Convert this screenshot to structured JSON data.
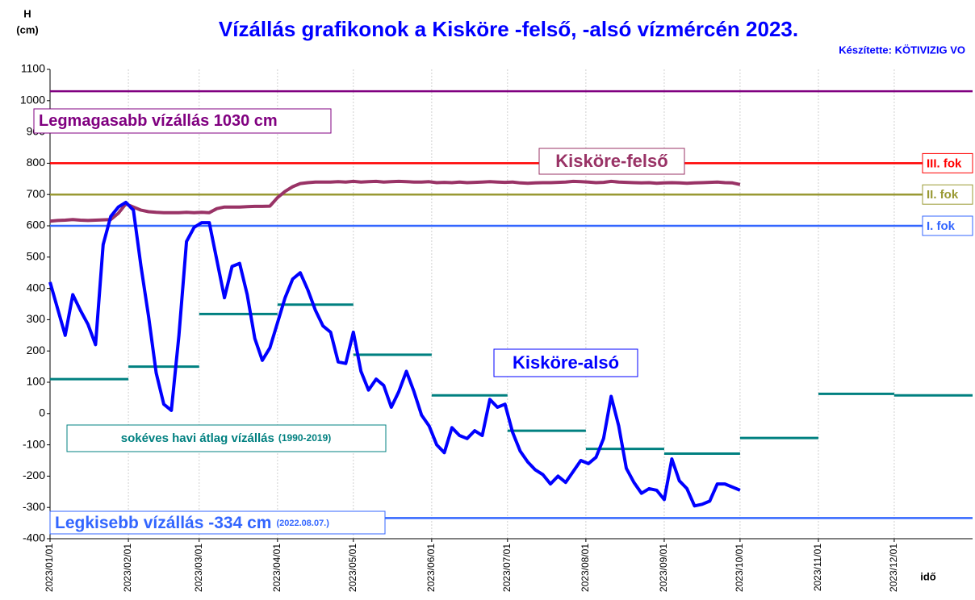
{
  "chart_data": {
    "type": "line",
    "title": "Vízállás grafikonok a Kisköre -felső, -alsó vízmércén 2023.",
    "credit": "Készítette: KÖTIVIZIG VO",
    "ylabel": "H",
    "yunit": "(cm)",
    "xlabel": "idő",
    "ylim": [
      -400,
      1100
    ],
    "yticks": [
      -400,
      -300,
      -200,
      -100,
      0,
      100,
      200,
      300,
      400,
      500,
      600,
      700,
      800,
      900,
      1000,
      1100
    ],
    "xlim": [
      "2023/01/01",
      "2023/12/31"
    ],
    "xticks": [
      "2023/01/01",
      "2023/02/01",
      "2023/03/01",
      "2023/04/01",
      "2023/05/01",
      "2023/06/01",
      "2023/07/01",
      "2023/08/01",
      "2023/09/01",
      "2023/10/01",
      "2023/11/01",
      "2023/12/01"
    ],
    "grid": true,
    "x": [
      "2023/01/01",
      "2023/01/04",
      "2023/01/07",
      "2023/01/10",
      "2023/01/13",
      "2023/01/16",
      "2023/01/19",
      "2023/01/22",
      "2023/01/25",
      "2023/01/28",
      "2023/01/31",
      "2023/02/03",
      "2023/02/06",
      "2023/02/09",
      "2023/02/12",
      "2023/02/15",
      "2023/02/18",
      "2023/02/21",
      "2023/02/24",
      "2023/02/27",
      "2023/03/02",
      "2023/03/05",
      "2023/03/08",
      "2023/03/11",
      "2023/03/14",
      "2023/03/17",
      "2023/03/20",
      "2023/03/23",
      "2023/03/26",
      "2023/03/29",
      "2023/04/01",
      "2023/04/04",
      "2023/04/07",
      "2023/04/10",
      "2023/04/13",
      "2023/04/16",
      "2023/04/19",
      "2023/04/22",
      "2023/04/25",
      "2023/04/28",
      "2023/05/01",
      "2023/05/04",
      "2023/05/07",
      "2023/05/10",
      "2023/05/13",
      "2023/05/16",
      "2023/05/19",
      "2023/05/22",
      "2023/05/25",
      "2023/05/28",
      "2023/05/31",
      "2023/06/03",
      "2023/06/06",
      "2023/06/09",
      "2023/06/12",
      "2023/06/15",
      "2023/06/18",
      "2023/06/21",
      "2023/06/24",
      "2023/06/27",
      "2023/06/30",
      "2023/07/03",
      "2023/07/06",
      "2023/07/09",
      "2023/07/12",
      "2023/07/15",
      "2023/07/18",
      "2023/07/21",
      "2023/07/24",
      "2023/07/27",
      "2023/07/30",
      "2023/08/02",
      "2023/08/05",
      "2023/08/08",
      "2023/08/11",
      "2023/08/14",
      "2023/08/17",
      "2023/08/20",
      "2023/08/23",
      "2023/08/26",
      "2023/08/29",
      "2023/09/01",
      "2023/09/04",
      "2023/09/07",
      "2023/09/10",
      "2023/09/13",
      "2023/09/16",
      "2023/09/19",
      "2023/09/22",
      "2023/09/25",
      "2023/09/28",
      "2023/10/01"
    ],
    "series": [
      {
        "name": "Kisköre-felső",
        "color": "#993366",
        "values": [
          615,
          617,
          618,
          620,
          618,
          617,
          618,
          619,
          620,
          640,
          670,
          660,
          650,
          645,
          643,
          642,
          642,
          642,
          643,
          642,
          643,
          642,
          655,
          660,
          660,
          660,
          661,
          662,
          662,
          663,
          690,
          710,
          725,
          735,
          738,
          740,
          740,
          740,
          741,
          740,
          742,
          740,
          741,
          742,
          740,
          741,
          742,
          741,
          740,
          740,
          741,
          738,
          739,
          738,
          740,
          738,
          739,
          740,
          741,
          740,
          739,
          740,
          737,
          736,
          737,
          738,
          738,
          739,
          740,
          742,
          741,
          740,
          738,
          739,
          742,
          740,
          739,
          738,
          737,
          738,
          736,
          737,
          738,
          737,
          736,
          737,
          738,
          739,
          740,
          738,
          737,
          732
        ]
      },
      {
        "name": "Kisköre-alsó",
        "color": "#0000ff",
        "values": [
          420,
          335,
          250,
          380,
          330,
          285,
          220,
          540,
          630,
          660,
          675,
          650,
          470,
          310,
          130,
          30,
          10,
          250,
          550,
          595,
          610,
          610,
          490,
          370,
          470,
          480,
          380,
          240,
          170,
          210,
          290,
          370,
          430,
          450,
          395,
          330,
          280,
          260,
          165,
          160,
          260,
          135,
          75,
          110,
          90,
          20,
          70,
          135,
          70,
          -5,
          -40,
          -100,
          -125,
          -45,
          -70,
          -80,
          -55,
          -70,
          45,
          20,
          30,
          -60,
          -120,
          -155,
          -180,
          -195,
          -225,
          -200,
          -220,
          -185,
          -150,
          -160,
          -140,
          -80,
          55,
          -40,
          -175,
          -220,
          -255,
          -240,
          -245,
          -275,
          -145,
          -215,
          -240,
          -295,
          -290,
          -280,
          -225,
          -225,
          -235,
          -245
        ]
      }
    ],
    "monthly_average": {
      "name": "sokéves havi átlag vízállás",
      "period": "(1990-2019)",
      "color": "#008080",
      "values": [
        110,
        150,
        318,
        348,
        188,
        58,
        -55,
        -113,
        -128,
        -78,
        63,
        58
      ]
    },
    "reference_lines": [
      {
        "value": 1030,
        "color": "#800080",
        "label": "Legmagasabb vízállás 1030 cm"
      },
      {
        "value": 800,
        "color": "#ff0000",
        "label": "III. fok"
      },
      {
        "value": 700,
        "color": "#999933",
        "label": "II. fok"
      },
      {
        "value": 600,
        "color": "#3366ff",
        "label": "I. fok"
      },
      {
        "value": -334,
        "color": "#3366ff",
        "label": "Legkisebb vízállás -334 cm",
        "note": "(2022.08.07.)"
      }
    ]
  }
}
